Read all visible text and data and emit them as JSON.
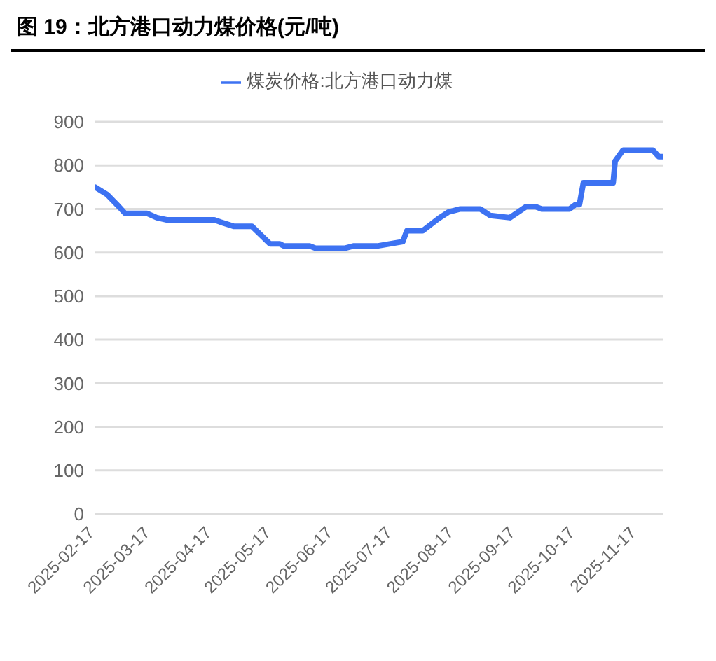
{
  "chart_data": {
    "type": "line",
    "title": "图 19：北方港口动力煤价格(元/吨)",
    "x": [
      "2025-02-17",
      "2025-02-23",
      "2025-03-01",
      "2025-03-04",
      "2025-03-15",
      "2025-03-20",
      "2025-03-25",
      "2025-04-18",
      "2025-04-21",
      "2025-04-28",
      "2025-05-07",
      "2025-05-16",
      "2025-05-21",
      "2025-05-23",
      "2025-06-05",
      "2025-06-08",
      "2025-06-23",
      "2025-06-27",
      "2025-07-09",
      "2025-07-22",
      "2025-07-24",
      "2025-08-01",
      "2025-08-09",
      "2025-08-14",
      "2025-08-20",
      "2025-08-30",
      "2025-09-04",
      "2025-09-14",
      "2025-09-22",
      "2025-09-27",
      "2025-09-30",
      "2025-10-14",
      "2025-10-17",
      "2025-10-19",
      "2025-10-21",
      "2025-11-05",
      "2025-11-06",
      "2025-11-10",
      "2025-11-25",
      "2025-11-28",
      "2025-11-30"
    ],
    "series": [
      {
        "name": "煤炭价格:北方港口动力煤",
        "color": "#3d72f2",
        "values": [
          750,
          733,
          705,
          690,
          690,
          680,
          675,
          675,
          670,
          660,
          660,
          620,
          620,
          615,
          615,
          610,
          610,
          615,
          615,
          625,
          650,
          650,
          678,
          693,
          700,
          700,
          685,
          680,
          705,
          705,
          700,
          700,
          710,
          710,
          760,
          760,
          810,
          835,
          835,
          820,
          820
        ]
      }
    ],
    "xlim": [
      "2025-02-17",
      "2025-11-30"
    ],
    "xticks": [
      "2025-02-17",
      "2025-03-17",
      "2025-04-17",
      "2025-05-17",
      "2025-06-17",
      "2025-07-17",
      "2025-08-17",
      "2025-09-17",
      "2025-10-17",
      "2025-11-17"
    ],
    "ylim": [
      0,
      900
    ],
    "yticks": [
      0,
      100,
      200,
      300,
      400,
      500,
      600,
      700,
      800,
      900
    ],
    "grid": "y",
    "legend": "top",
    "marker": "none",
    "line_style": "solid"
  }
}
